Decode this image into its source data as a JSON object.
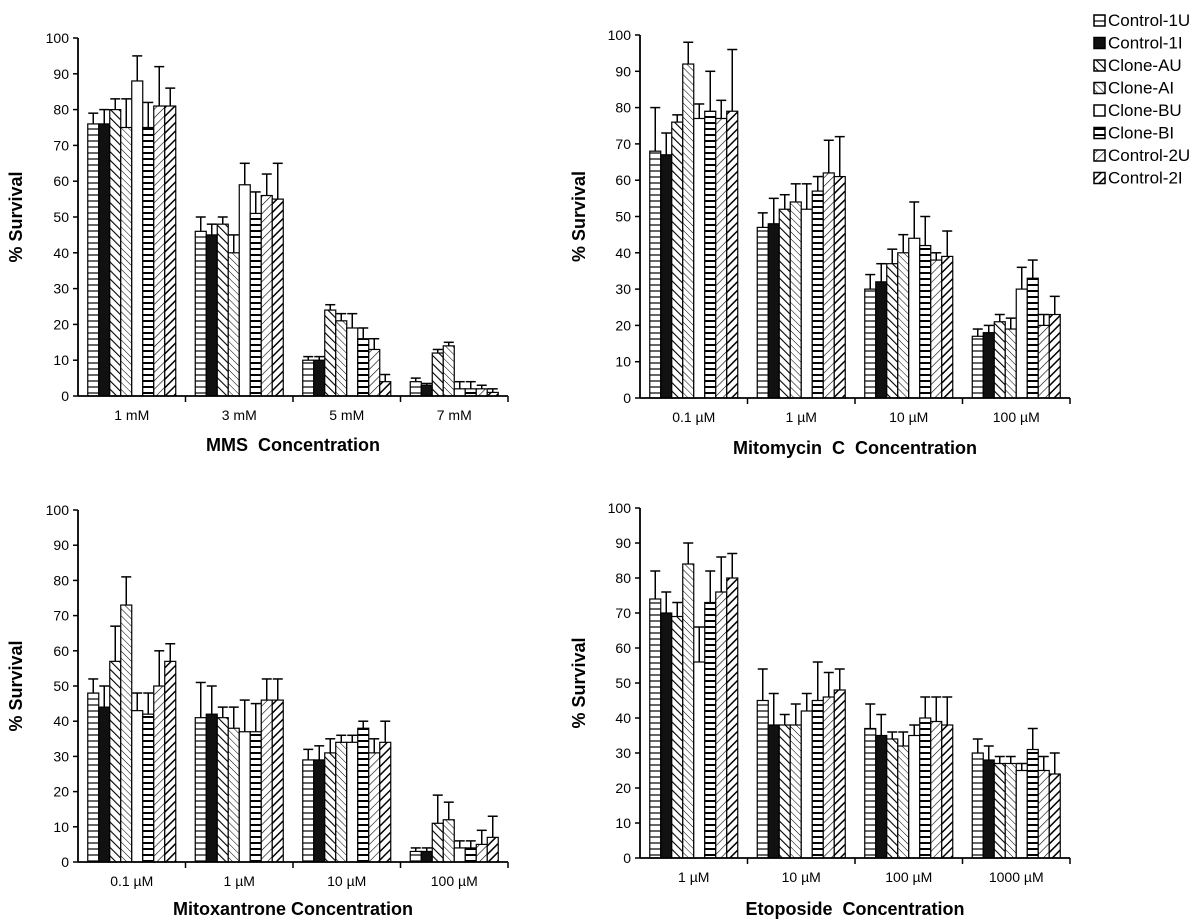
{
  "legend": {
    "entries": [
      "Control-1U",
      "Control-1I",
      "Clone-AU",
      "Clone-AI",
      "Clone-BU",
      "Clone-BI",
      "Control-2U",
      "Control-2I"
    ],
    "placement": "top-right"
  },
  "chart_data": [
    {
      "type": "bar",
      "xlabel": "MMS  Concentration",
      "ylabel": "% Survival",
      "ylim": [
        0,
        100
      ],
      "yticks": [
        0,
        10,
        20,
        30,
        40,
        50,
        60,
        70,
        80,
        90,
        100
      ],
      "categories": [
        "1 mM",
        "3 mM",
        "5 mM",
        "7 mM"
      ],
      "series": [
        {
          "name": "Control-1U",
          "values": [
            76,
            46,
            10,
            4
          ],
          "errors": [
            3,
            4,
            1,
            1
          ]
        },
        {
          "name": "Control-1I",
          "values": [
            76,
            45,
            10,
            3
          ],
          "errors": [
            4,
            3,
            1,
            0.5
          ]
        },
        {
          "name": "Clone-AU",
          "values": [
            80,
            48,
            24,
            12
          ],
          "errors": [
            3,
            2,
            1.5,
            1
          ]
        },
        {
          "name": "Clone-AI",
          "values": [
            75,
            40,
            21,
            14
          ],
          "errors": [
            8,
            5,
            2,
            1
          ]
        },
        {
          "name": "Clone-BU",
          "values": [
            88,
            59,
            19,
            2
          ],
          "errors": [
            7,
            6,
            4,
            2
          ]
        },
        {
          "name": "Clone-BI",
          "values": [
            75,
            51,
            16,
            2
          ],
          "errors": [
            7,
            6,
            3,
            2
          ]
        },
        {
          "name": "Control-2U",
          "values": [
            81,
            56,
            13,
            2
          ],
          "errors": [
            11,
            6,
            3,
            1
          ]
        },
        {
          "name": "Control-2I",
          "values": [
            81,
            55,
            4,
            1
          ],
          "errors": [
            5,
            10,
            2,
            1
          ]
        }
      ]
    },
    {
      "type": "bar",
      "xlabel": "Mitomycin  C  Concentration",
      "ylabel": "% Survival",
      "ylim": [
        0,
        100
      ],
      "yticks": [
        0,
        10,
        20,
        30,
        40,
        50,
        60,
        70,
        80,
        90,
        100
      ],
      "categories": [
        "0.1 µM",
        "1 µM",
        "10 µM",
        "100 µM"
      ],
      "series": [
        {
          "name": "Control-1U",
          "values": [
            68,
            47,
            30,
            17
          ],
          "errors": [
            12,
            4,
            4,
            2
          ]
        },
        {
          "name": "Control-1I",
          "values": [
            67,
            48,
            32,
            18
          ],
          "errors": [
            6,
            7,
            5,
            2
          ]
        },
        {
          "name": "Clone-AU",
          "values": [
            76,
            52,
            37,
            21
          ],
          "errors": [
            2,
            4,
            4,
            2
          ]
        },
        {
          "name": "Clone-AI",
          "values": [
            92,
            54,
            40,
            19
          ],
          "errors": [
            6,
            5,
            5,
            3
          ]
        },
        {
          "name": "Clone-BU",
          "values": [
            77,
            52,
            44,
            30
          ],
          "errors": [
            4,
            7,
            10,
            6
          ]
        },
        {
          "name": "Clone-BI",
          "values": [
            79,
            57,
            42,
            33
          ],
          "errors": [
            11,
            4,
            8,
            5
          ]
        },
        {
          "name": "Control-2U",
          "values": [
            77,
            62,
            38,
            20
          ],
          "errors": [
            5,
            9,
            2,
            3
          ]
        },
        {
          "name": "Control-2I",
          "values": [
            79,
            61,
            39,
            23
          ],
          "errors": [
            17,
            11,
            7,
            5
          ]
        }
      ]
    },
    {
      "type": "bar",
      "xlabel": "Mitoxantrone Concentration",
      "ylabel": "% Survival",
      "ylim": [
        0,
        100
      ],
      "yticks": [
        0,
        10,
        20,
        30,
        40,
        50,
        60,
        70,
        80,
        90,
        100
      ],
      "categories": [
        "0.1 µM",
        "1 µM",
        "10 µM",
        "100 µM"
      ],
      "series": [
        {
          "name": "Control-1U",
          "values": [
            48,
            41,
            29,
            3
          ],
          "errors": [
            4,
            10,
            3,
            1
          ]
        },
        {
          "name": "Control-1I",
          "values": [
            44,
            42,
            29,
            3
          ],
          "errors": [
            6,
            8,
            4,
            1
          ]
        },
        {
          "name": "Clone-AU",
          "values": [
            57,
            41,
            31,
            11
          ],
          "errors": [
            10,
            3,
            4,
            8
          ]
        },
        {
          "name": "Clone-AI",
          "values": [
            73,
            38,
            34,
            12
          ],
          "errors": [
            8,
            6,
            2,
            5
          ]
        },
        {
          "name": "Clone-BU",
          "values": [
            43,
            37,
            34,
            4
          ],
          "errors": [
            5,
            9,
            2,
            2
          ]
        },
        {
          "name": "Clone-BI",
          "values": [
            42,
            37,
            38,
            4
          ],
          "errors": [
            6,
            8,
            2,
            2
          ]
        },
        {
          "name": "Control-2U",
          "values": [
            50,
            46,
            31,
            5
          ],
          "errors": [
            10,
            6,
            4,
            4
          ]
        },
        {
          "name": "Control-2I",
          "values": [
            57,
            46,
            34,
            7
          ],
          "errors": [
            5,
            6,
            6,
            6
          ]
        }
      ]
    },
    {
      "type": "bar",
      "xlabel": "Etoposide  Concentration",
      "ylabel": "% Survival",
      "ylim": [
        0,
        100
      ],
      "yticks": [
        0,
        10,
        20,
        30,
        40,
        50,
        60,
        70,
        80,
        90,
        100
      ],
      "categories": [
        "1 µM",
        "10 µM",
        "100 µM",
        "1000 µM"
      ],
      "series": [
        {
          "name": "Control-1U",
          "values": [
            74,
            45,
            37,
            30
          ],
          "errors": [
            8,
            9,
            7,
            4
          ]
        },
        {
          "name": "Control-1I",
          "values": [
            70,
            38,
            35,
            28
          ],
          "errors": [
            6,
            9,
            6,
            4
          ]
        },
        {
          "name": "Clone-AU",
          "values": [
            69,
            38,
            34,
            27
          ],
          "errors": [
            4,
            3,
            2,
            2
          ]
        },
        {
          "name": "Clone-AI",
          "values": [
            84,
            38,
            32,
            27
          ],
          "errors": [
            6,
            6,
            4,
            2
          ]
        },
        {
          "name": "Clone-BU",
          "values": [
            56,
            42,
            35,
            25
          ],
          "errors": [
            10,
            5,
            3,
            2
          ]
        },
        {
          "name": "Clone-BI",
          "values": [
            73,
            45,
            40,
            31
          ],
          "errors": [
            9,
            11,
            6,
            6
          ]
        },
        {
          "name": "Control-2U",
          "values": [
            76,
            46,
            39,
            25
          ],
          "errors": [
            10,
            7,
            7,
            4
          ]
        },
        {
          "name": "Control-2I",
          "values": [
            80,
            48,
            38,
            24
          ],
          "errors": [
            7,
            6,
            8,
            6
          ]
        }
      ]
    }
  ]
}
